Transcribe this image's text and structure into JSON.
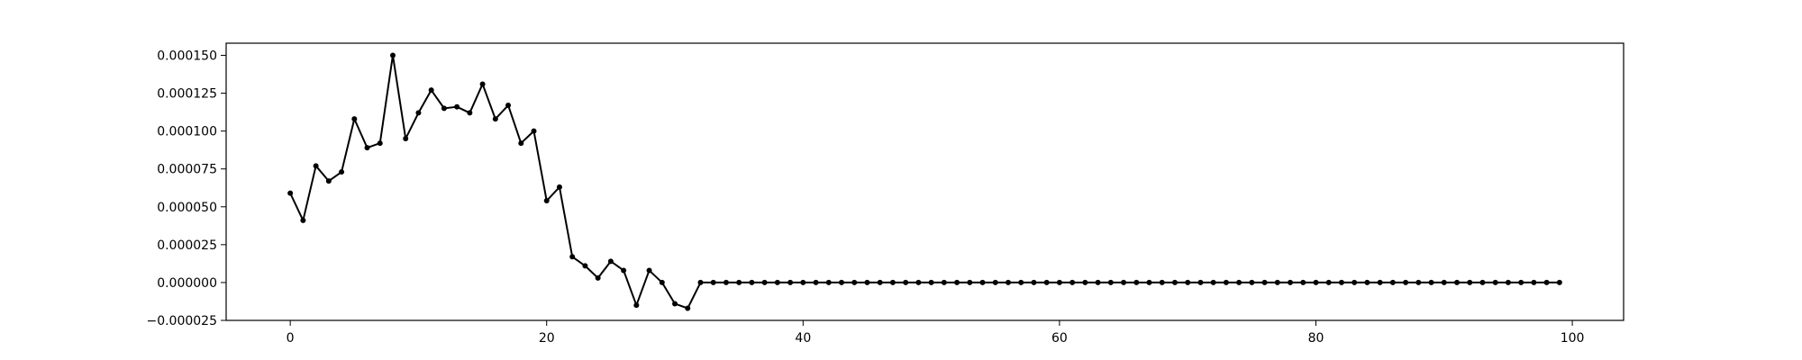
{
  "chart_data": {
    "type": "line",
    "title": "",
    "xlabel": "",
    "ylabel": "",
    "xlim": [
      -5,
      104
    ],
    "ylim": [
      -2.5e-05,
      0.000158
    ],
    "grid": false,
    "legend": "none",
    "x_ticks": [
      0,
      20,
      40,
      60,
      80,
      100
    ],
    "x_tick_labels": [
      "0",
      "20",
      "40",
      "60",
      "80",
      "100"
    ],
    "y_ticks": [
      -2.5e-05,
      0.0,
      2.5e-05,
      5e-05,
      7.5e-05,
      0.0001,
      0.000125,
      0.00015
    ],
    "y_tick_labels": [
      "−0.000025",
      "0.000000",
      "0.000025",
      "0.000050",
      "0.000075",
      "0.000100",
      "0.000125",
      "0.000150"
    ],
    "colors": {
      "line": "#000000",
      "marker": "#000000",
      "axes": "#000000",
      "background": "#ffffff"
    },
    "series": [
      {
        "x": [
          0,
          1,
          2,
          3,
          4,
          5,
          6,
          7,
          8,
          9,
          10,
          11,
          12,
          13,
          14,
          15,
          16,
          17,
          18,
          19,
          20,
          21,
          22,
          23,
          24,
          25,
          26,
          27,
          28,
          29,
          30,
          31,
          32,
          33,
          34,
          35,
          36,
          37,
          38,
          39,
          40,
          41,
          42,
          43,
          44,
          45,
          46,
          47,
          48,
          49,
          50,
          51,
          52,
          53,
          54,
          55,
          56,
          57,
          58,
          59,
          60,
          61,
          62,
          63,
          64,
          65,
          66,
          67,
          68,
          69,
          70,
          71,
          72,
          73,
          74,
          75,
          76,
          77,
          78,
          79,
          80,
          81,
          82,
          83,
          84,
          85,
          86,
          87,
          88,
          89,
          90,
          91,
          92,
          93,
          94,
          95,
          96,
          97,
          98,
          99
        ],
        "values": [
          5.9e-05,
          4.1e-05,
          7.7e-05,
          6.7e-05,
          7.3e-05,
          0.000108,
          8.9e-05,
          9.2e-05,
          0.00015,
          9.5e-05,
          0.000112,
          0.000127,
          0.000115,
          0.000116,
          0.000112,
          0.000131,
          0.000108,
          0.000117,
          9.2e-05,
          0.0001,
          5.4e-05,
          6.3e-05,
          1.7e-05,
          1.1e-05,
          3e-06,
          1.4e-05,
          8e-06,
          -1.5e-05,
          8e-06,
          0.0,
          -1.4e-05,
          -1.7e-05,
          0,
          0,
          0,
          0,
          0,
          0,
          0,
          0,
          0,
          0,
          0,
          0,
          0,
          0,
          0,
          0,
          0,
          0,
          0,
          0,
          0,
          0,
          0,
          0,
          0,
          0,
          0,
          0,
          0,
          0,
          0,
          0,
          0,
          0,
          0,
          0,
          0,
          0,
          0,
          0,
          0,
          0,
          0,
          0,
          0,
          0,
          0,
          0,
          0,
          0,
          0,
          0,
          0,
          0,
          0,
          0,
          0,
          0,
          0,
          0,
          0,
          0,
          0,
          0,
          0,
          0,
          0,
          0
        ]
      }
    ]
  }
}
